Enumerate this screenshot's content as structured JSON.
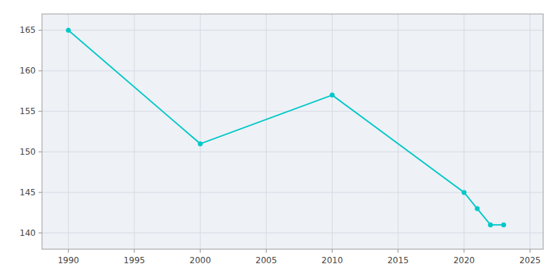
{
  "chart_data": {
    "type": "line",
    "x": [
      1990,
      2000,
      2010,
      2020,
      2021,
      2022,
      2023
    ],
    "values": [
      165,
      151,
      157,
      145,
      143,
      141,
      141
    ],
    "color": "#00C8C8",
    "marker": "circle",
    "xlim": [
      1988,
      2026
    ],
    "ylim": [
      138,
      167
    ],
    "xticks": [
      1990,
      1995,
      2000,
      2005,
      2010,
      2015,
      2020,
      2025
    ],
    "yticks": [
      140,
      145,
      150,
      155,
      160,
      165
    ],
    "grid": true
  }
}
